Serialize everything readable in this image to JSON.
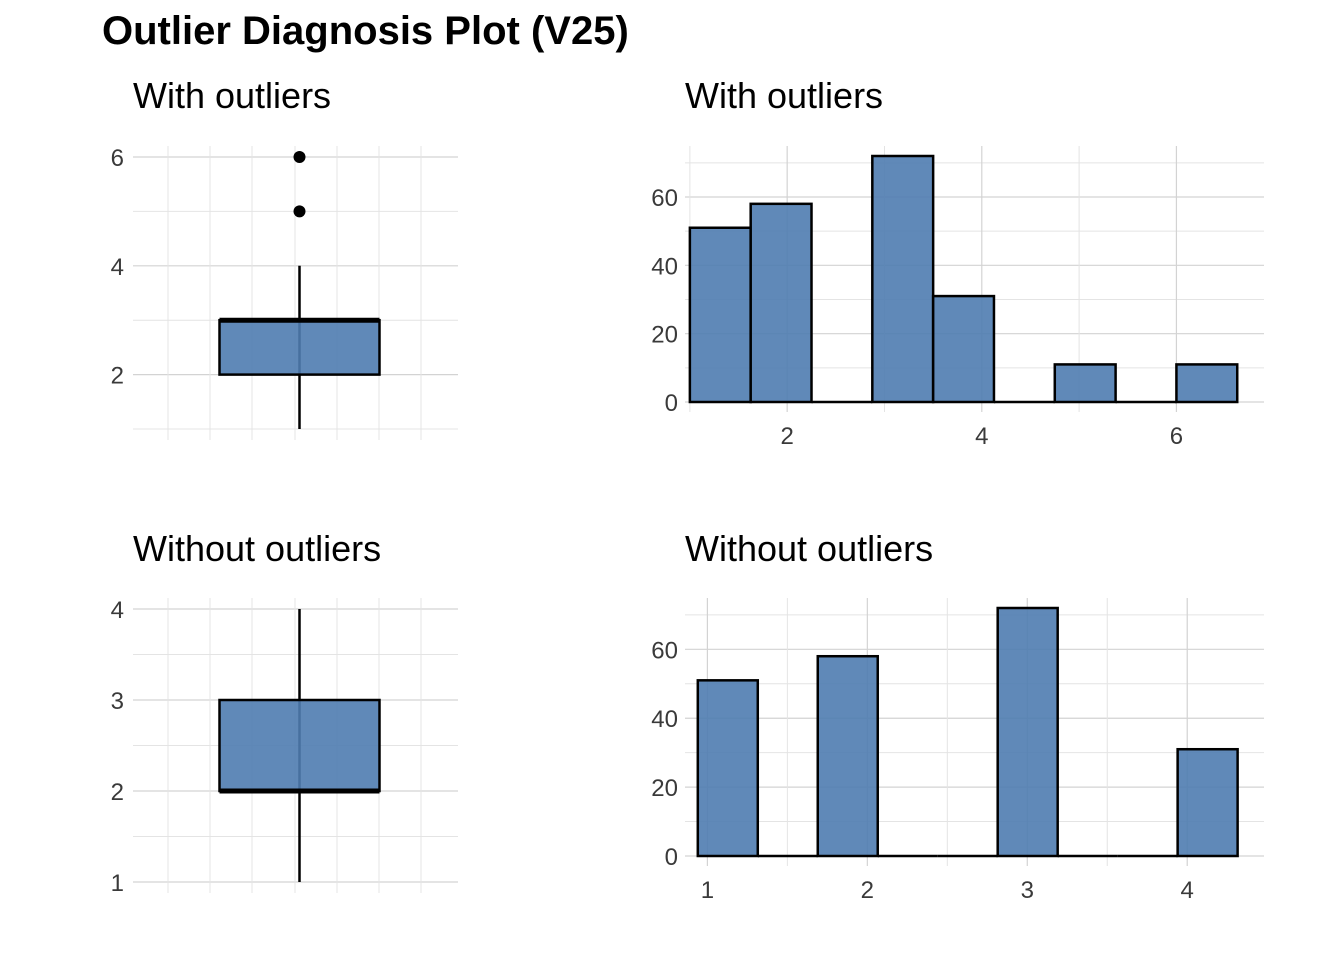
{
  "title": "Outlier Diagnosis Plot (V25)",
  "colors": {
    "fill": "#4f7cb0",
    "stroke": "#000000",
    "grid": "#d3d3d3"
  },
  "chart_data": [
    {
      "type": "boxplot",
      "title": "With outliers",
      "ylim": [
        1,
        6
      ],
      "yticks": [
        2,
        4,
        6
      ],
      "min": 1,
      "q1": 2,
      "median": 3,
      "q3": 3,
      "max": 4,
      "outliers": [
        5,
        6
      ],
      "grid": true
    },
    {
      "type": "bar",
      "subtype": "histogram",
      "title": "With outliers",
      "bins": [
        {
          "x0": 1.0,
          "x1": 1.625,
          "count": 51
        },
        {
          "x0": 1.625,
          "x1": 2.25,
          "count": 58
        },
        {
          "x0": 2.25,
          "x1": 2.875,
          "count": 0
        },
        {
          "x0": 2.875,
          "x1": 3.5,
          "count": 72
        },
        {
          "x0": 3.5,
          "x1": 4.125,
          "count": 31
        },
        {
          "x0": 4.125,
          "x1": 4.75,
          "count": 0
        },
        {
          "x0": 4.75,
          "x1": 5.375,
          "count": 11
        },
        {
          "x0": 5.375,
          "x1": 6.0,
          "count": 0
        },
        {
          "x0": 6.0,
          "x1": 6.625,
          "count": 11
        }
      ],
      "xlim": [
        0.95,
        6.9
      ],
      "xticks": [
        2,
        4,
        6
      ],
      "ylim": [
        0,
        72
      ],
      "yticks": [
        0,
        20,
        40,
        60
      ],
      "grid": true
    },
    {
      "type": "boxplot",
      "title": "Without outliers",
      "ylim": [
        1,
        4
      ],
      "yticks": [
        1,
        2,
        3,
        4
      ],
      "min": 1,
      "q1": 2,
      "median": 2,
      "q3": 3,
      "max": 4,
      "outliers": [],
      "grid": true
    },
    {
      "type": "bar",
      "subtype": "histogram",
      "title": "Without outliers",
      "bins": [
        {
          "x0": 0.94,
          "x1": 1.315,
          "count": 51
        },
        {
          "x0": 1.315,
          "x1": 1.69,
          "count": 0
        },
        {
          "x0": 1.69,
          "x1": 2.065,
          "count": 58
        },
        {
          "x0": 2.065,
          "x1": 2.44,
          "count": 0
        },
        {
          "x0": 2.44,
          "x1": 2.815,
          "count": 0
        },
        {
          "x0": 2.815,
          "x1": 3.19,
          "count": 72
        },
        {
          "x0": 3.19,
          "x1": 3.565,
          "count": 0
        },
        {
          "x0": 3.565,
          "x1": 3.94,
          "count": 0
        },
        {
          "x0": 3.94,
          "x1": 4.315,
          "count": 31
        }
      ],
      "xlim": [
        0.86,
        4.48
      ],
      "xticks": [
        1,
        2,
        3,
        4
      ],
      "ylim": [
        0,
        72
      ],
      "yticks": [
        0,
        20,
        40,
        60
      ],
      "grid": true
    }
  ]
}
